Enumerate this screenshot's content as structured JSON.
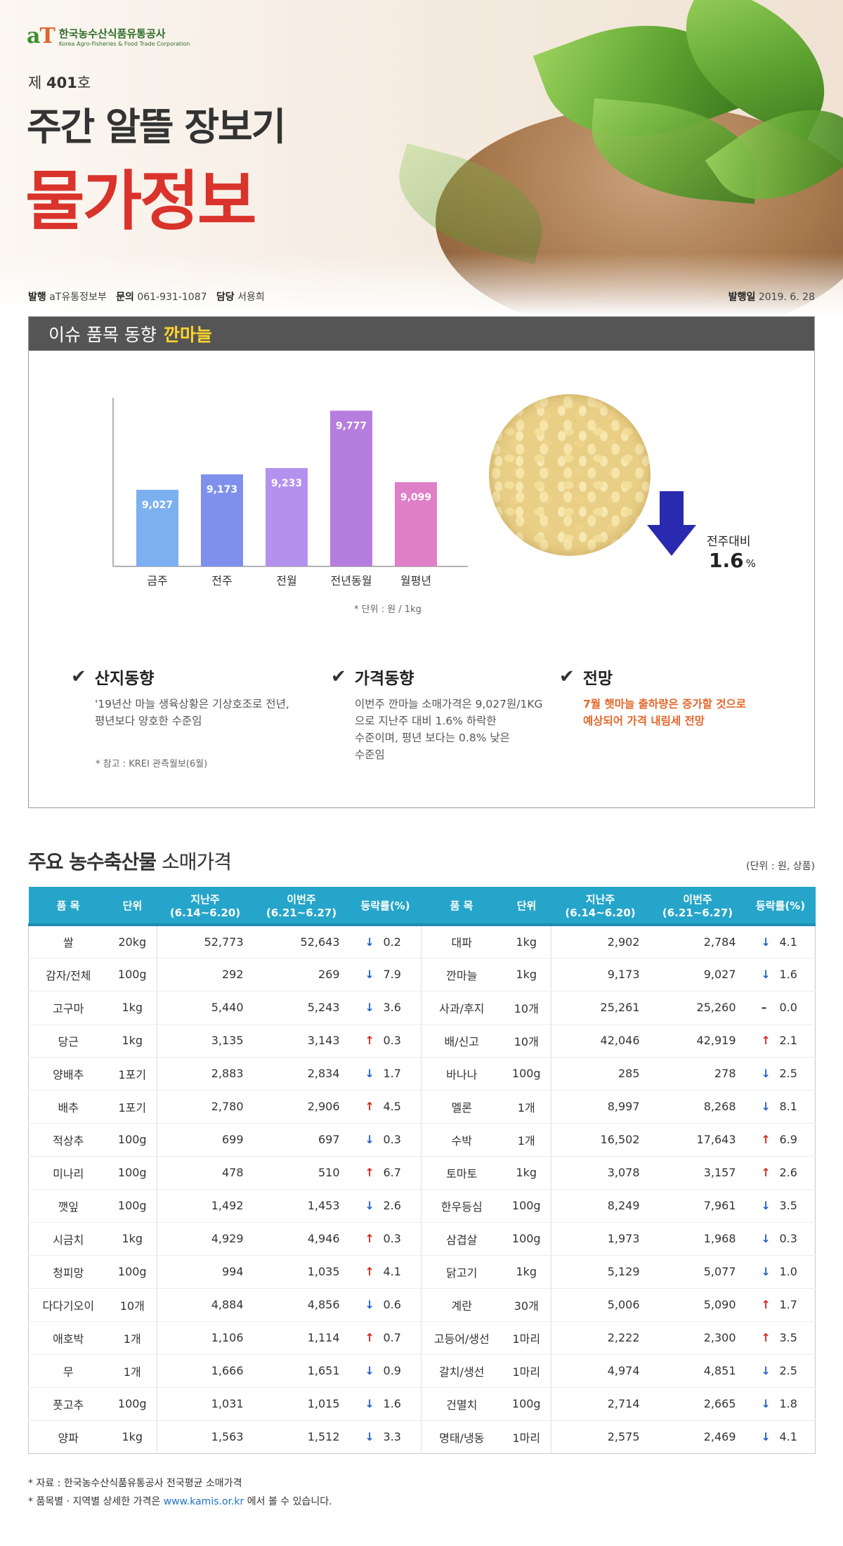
{
  "header": {
    "logo_mark_a": "a",
    "logo_mark_t": "T",
    "logo_ko": "한국농수산식품유통공사",
    "logo_en": "Korea Agro-Fisheries & Food Trade Corporation",
    "issue_prefix": "제",
    "issue_number": "401",
    "issue_suffix": "호",
    "title_main": "주간 알뜰 장보기",
    "title_red": "물가정보",
    "publisher_label": "발행",
    "publisher_value": "aT유통정보부",
    "contact_label": "문의",
    "contact_value": "061-931-1087",
    "manager_label": "담당",
    "manager_value": "서용희",
    "date_label": "발행일",
    "date_value": "2019. 6. 28"
  },
  "issue": {
    "heading": "이슈 품목 동향",
    "item": "깐마늘",
    "unit_note": "* 단위 : 원 / 1kg",
    "change_label": "전주대비",
    "change_value": "1.6",
    "change_unit": "%",
    "columns": [
      {
        "title": "산지동향",
        "lines": [
          "'19년산 마늘 생육상황은 기상호조로 전년,",
          "평년보다 양호한 수준임"
        ]
      },
      {
        "title": "가격동향",
        "lines": [
          "이번주 깐마늘 소매가격은 9,027원/1KG",
          "으로 지난주 대비 1.6% 하락한",
          "수준이며, 평년 보다는 0.8% 낮은",
          "수준임"
        ]
      },
      {
        "title": "전망",
        "lines": [
          "7월 햇마늘 출하량은 증가할 것으로",
          "예상되어 가격 내림세 전망"
        ]
      }
    ],
    "ref_note": "* 참고 : KREI 관측월보(6월)"
  },
  "chart_data": {
    "type": "bar",
    "categories": [
      "금주",
      "전주",
      "전월",
      "전년동월",
      "월평년"
    ],
    "values": [
      9027,
      9173,
      9233,
      9777,
      9099
    ],
    "value_labels": [
      "9,027",
      "9,173",
      "9,233",
      "9,777",
      "9,099"
    ],
    "colors": [
      "#7db0f0",
      "#7f90ec",
      "#b591ee",
      "#b57ddd",
      "#df7fc8"
    ],
    "ylim": [
      8300,
      9900
    ],
    "grid": false
  },
  "table": {
    "title_bold": "주요 농수축산물",
    "title_rest": "소매가격",
    "unit": "(단위 : 원, 상품)",
    "headers": [
      "품 목",
      "단위",
      "지난주(6.14~6.20)",
      "이번주(6.21~6.27)",
      "등락률(%)"
    ],
    "rows": [
      {
        "l": [
          "쌀",
          "20kg",
          "52,773",
          "52,643",
          "down",
          "0.2"
        ],
        "r": [
          "대파",
          "1kg",
          "2,902",
          "2,784",
          "down",
          "4.1"
        ]
      },
      {
        "l": [
          "감자/전체",
          "100g",
          "292",
          "269",
          "down",
          "7.9"
        ],
        "r": [
          "깐마늘",
          "1kg",
          "9,173",
          "9,027",
          "down",
          "1.6"
        ]
      },
      {
        "l": [
          "고구마",
          "1kg",
          "5,440",
          "5,243",
          "down",
          "3.6"
        ],
        "r": [
          "사과/후지",
          "10개",
          "25,261",
          "25,260",
          "flat",
          "0.0"
        ]
      },
      {
        "l": [
          "당근",
          "1kg",
          "3,135",
          "3,143",
          "up",
          "0.3"
        ],
        "r": [
          "배/신고",
          "10개",
          "42,046",
          "42,919",
          "up",
          "2.1"
        ]
      },
      {
        "l": [
          "양배추",
          "1포기",
          "2,883",
          "2,834",
          "down",
          "1.7"
        ],
        "r": [
          "바나나",
          "100g",
          "285",
          "278",
          "down",
          "2.5"
        ]
      },
      {
        "l": [
          "배추",
          "1포기",
          "2,780",
          "2,906",
          "up",
          "4.5"
        ],
        "r": [
          "멜론",
          "1개",
          "8,997",
          "8,268",
          "down",
          "8.1"
        ]
      },
      {
        "l": [
          "적상추",
          "100g",
          "699",
          "697",
          "down",
          "0.3"
        ],
        "r": [
          "수박",
          "1개",
          "16,502",
          "17,643",
          "up",
          "6.9"
        ]
      },
      {
        "l": [
          "미나리",
          "100g",
          "478",
          "510",
          "up",
          "6.7"
        ],
        "r": [
          "토마토",
          "1kg",
          "3,078",
          "3,157",
          "up",
          "2.6"
        ]
      },
      {
        "l": [
          "깻잎",
          "100g",
          "1,492",
          "1,453",
          "down",
          "2.6"
        ],
        "r": [
          "한우등심",
          "100g",
          "8,249",
          "7,961",
          "down",
          "3.5"
        ]
      },
      {
        "l": [
          "시금치",
          "1kg",
          "4,929",
          "4,946",
          "up",
          "0.3"
        ],
        "r": [
          "삼겹살",
          "100g",
          "1,973",
          "1,968",
          "down",
          "0.3"
        ]
      },
      {
        "l": [
          "청피망",
          "100g",
          "994",
          "1,035",
          "up",
          "4.1"
        ],
        "r": [
          "닭고기",
          "1kg",
          "5,129",
          "5,077",
          "down",
          "1.0"
        ]
      },
      {
        "l": [
          "다다기오이",
          "10개",
          "4,884",
          "4,856",
          "down",
          "0.6"
        ],
        "r": [
          "계란",
          "30개",
          "5,006",
          "5,090",
          "up",
          "1.7"
        ]
      },
      {
        "l": [
          "애호박",
          "1개",
          "1,106",
          "1,114",
          "up",
          "0.7"
        ],
        "r": [
          "고등어/생선",
          "1마리",
          "2,222",
          "2,300",
          "up",
          "3.5"
        ]
      },
      {
        "l": [
          "무",
          "1개",
          "1,666",
          "1,651",
          "down",
          "0.9"
        ],
        "r": [
          "갈치/생선",
          "1마리",
          "4,974",
          "4,851",
          "down",
          "2.5"
        ]
      },
      {
        "l": [
          "풋고추",
          "100g",
          "1,031",
          "1,015",
          "down",
          "1.6"
        ],
        "r": [
          "건멸치",
          "100g",
          "2,714",
          "2,665",
          "down",
          "1.8"
        ]
      },
      {
        "l": [
          "양파",
          "1kg",
          "1,563",
          "1,512",
          "down",
          "3.3"
        ],
        "r": [
          "명태/냉동",
          "1마리",
          "2,575",
          "2,469",
          "down",
          "4.1"
        ]
      }
    ]
  },
  "footer": {
    "source": "* 자료 : 한국농수산식품유통공사 전국평균 소매가격",
    "detail_before": "* 품목별 · 지역별 상세한 가격은",
    "detail_link": "www.kamis.or.kr",
    "detail_after": "에서 볼 수 있습니다."
  }
}
